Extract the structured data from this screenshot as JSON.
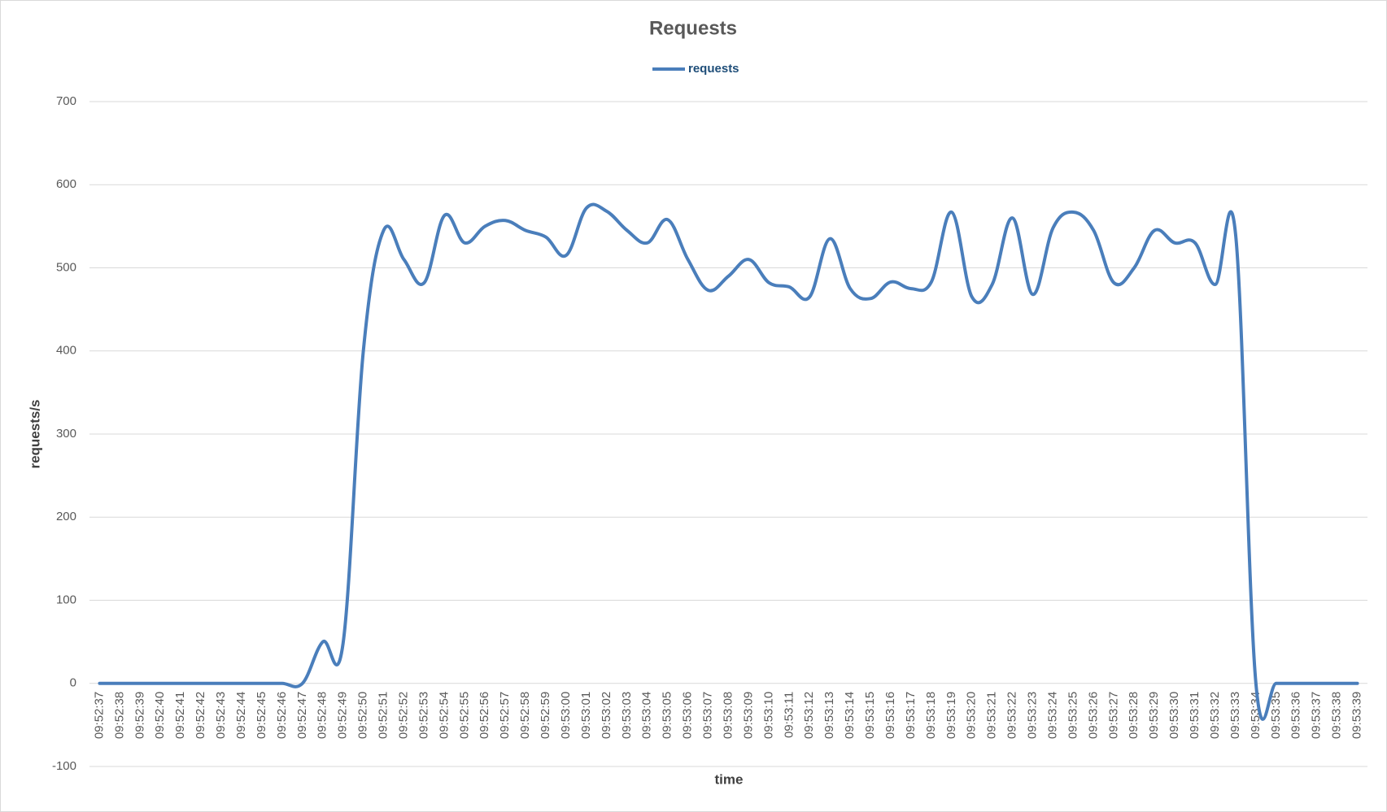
{
  "chart_data": {
    "type": "line",
    "title": "Requests",
    "x_label": "time",
    "y_label": "requests/s",
    "categories": [
      "09:52:37",
      "09:52:38",
      "09:52:39",
      "09:52:40",
      "09:52:41",
      "09:52:42",
      "09:52:43",
      "09:52:44",
      "09:52:45",
      "09:52:46",
      "09:52:47",
      "09:52:48",
      "09:52:49",
      "09:52:50",
      "09:52:51",
      "09:52:52",
      "09:52:53",
      "09:52:54",
      "09:52:55",
      "09:52:56",
      "09:52:57",
      "09:52:58",
      "09:52:59",
      "09:53:00",
      "09:53:01",
      "09:53:02",
      "09:53:03",
      "09:53:04",
      "09:53:05",
      "09:53:06",
      "09:53:07",
      "09:53:08",
      "09:53:09",
      "09:53:10",
      "09:53:11",
      "09:53:12",
      "09:53:13",
      "09:53:14",
      "09:53:15",
      "09:53:16",
      "09:53:17",
      "09:53:18",
      "09:53:19",
      "09:53:20",
      "09:53:21",
      "09:53:22",
      "09:53:23",
      "09:53:24",
      "09:53:25",
      "09:53:26",
      "09:53:27",
      "09:53:28",
      "09:53:29",
      "09:53:30",
      "09:53:31",
      "09:53:32",
      "09:53:33",
      "09:53:34",
      "09:53:35",
      "09:53:36",
      "09:53:37",
      "09:53:38",
      "09:53:39"
    ],
    "series": [
      {
        "name": "requests",
        "color": "#4a7ebb",
        "values": [
          0,
          0,
          0,
          0,
          0,
          0,
          0,
          0,
          0,
          0,
          0,
          50,
          48,
          400,
          545,
          510,
          482,
          563,
          530,
          550,
          557,
          545,
          537,
          515,
          572,
          568,
          545,
          530,
          558,
          510,
          473,
          490,
          510,
          482,
          477,
          465,
          535,
          475,
          463,
          483,
          475,
          483,
          567,
          465,
          480,
          560,
          468,
          548,
          567,
          545,
          482,
          500,
          545,
          530,
          530,
          480,
          540,
          0,
          0,
          0,
          0,
          0,
          0
        ]
      }
    ],
    "ylim": [
      -100,
      700
    ],
    "yticks": [
      -100,
      0,
      100,
      200,
      300,
      400,
      500,
      600,
      700
    ],
    "grid": true,
    "legend": "top"
  }
}
